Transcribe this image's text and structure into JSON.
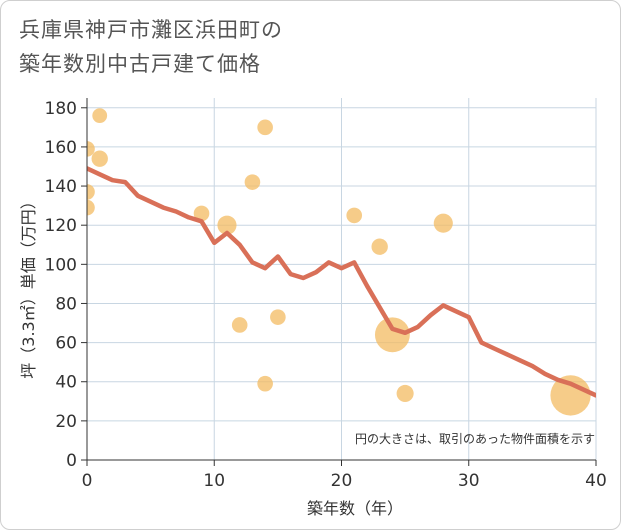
{
  "title_lines": [
    "兵庫県神戸市灘区浜田町の",
    "築年数別中古戸建て価格"
  ],
  "chart_data": {
    "type": "scatter",
    "title": "兵庫県神戸市灘区浜田町の築年数別中古戸建て価格",
    "xlabel": "築年数（年）",
    "ylabel": "坪（3.3㎡）単価（万円）",
    "xlim": [
      0,
      40
    ],
    "ylim": [
      0,
      185
    ],
    "xticks": [
      0,
      10,
      20,
      30,
      40
    ],
    "yticks": [
      0,
      20,
      40,
      60,
      80,
      100,
      120,
      140,
      160,
      180
    ],
    "grid": true,
    "note": "円の大きさは、取引のあった物件面積を示す",
    "colors": {
      "points": "#f3bb62",
      "line": "#d97058",
      "grid": "#c8d6e2",
      "axis": "#333333"
    },
    "points": [
      {
        "x": 0,
        "y": 159,
        "size": 1.0
      },
      {
        "x": 0,
        "y": 137,
        "size": 1.0
      },
      {
        "x": 0,
        "y": 129,
        "size": 1.0
      },
      {
        "x": 1,
        "y": 176,
        "size": 0.9
      },
      {
        "x": 1,
        "y": 154,
        "size": 1.1
      },
      {
        "x": 9,
        "y": 126,
        "size": 1.0
      },
      {
        "x": 11,
        "y": 120,
        "size": 1.5
      },
      {
        "x": 12,
        "y": 69,
        "size": 1.0
      },
      {
        "x": 13,
        "y": 142,
        "size": 1.0
      },
      {
        "x": 14,
        "y": 170,
        "size": 1.0
      },
      {
        "x": 14,
        "y": 39,
        "size": 1.0
      },
      {
        "x": 15,
        "y": 73,
        "size": 1.0
      },
      {
        "x": 21,
        "y": 125,
        "size": 1.0
      },
      {
        "x": 23,
        "y": 109,
        "size": 1.1
      },
      {
        "x": 24,
        "y": 64,
        "size": 3.0
      },
      {
        "x": 25,
        "y": 34,
        "size": 1.2
      },
      {
        "x": 28,
        "y": 121,
        "size": 1.5
      },
      {
        "x": 38,
        "y": 33,
        "size": 4.0
      }
    ],
    "trend": {
      "x": [
        0,
        1,
        2,
        3,
        4,
        5,
        6,
        7,
        8,
        9,
        10,
        11,
        12,
        13,
        14,
        15,
        16,
        17,
        18,
        19,
        20,
        21,
        22,
        23,
        24,
        25,
        26,
        27,
        28,
        29,
        30,
        31,
        32,
        33,
        34,
        35,
        36,
        37,
        38,
        39,
        40
      ],
      "y": [
        149,
        146,
        143,
        142,
        135,
        132,
        129,
        127,
        124,
        122,
        111,
        116,
        110,
        101,
        98,
        104,
        95,
        93,
        96,
        101,
        98,
        101,
        89,
        78,
        67,
        65,
        68,
        74,
        79,
        76,
        73,
        60,
        57,
        54,
        51,
        48,
        44,
        41,
        39,
        36,
        33
      ]
    }
  }
}
